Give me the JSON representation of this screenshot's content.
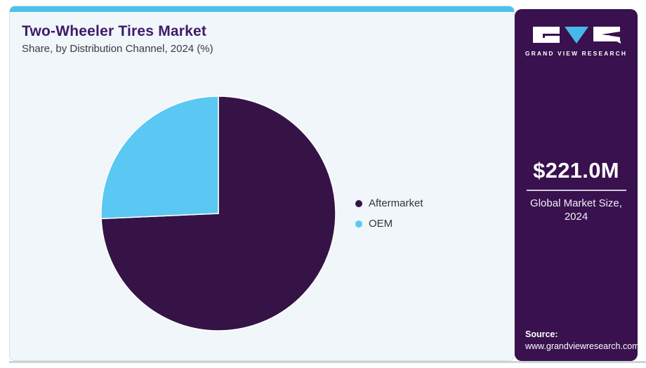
{
  "header": {
    "title": "Two-Wheeler Tires Market",
    "subtitle": "Share, by Distribution Channel, 2024 (%)"
  },
  "chart_data": {
    "type": "pie",
    "title": "Two-Wheeler Tires Market",
    "subtitle": "Share, by Distribution Channel, 2024 (%)",
    "unit": "%",
    "slices": [
      {
        "label": "Aftermarket",
        "value": 74.3,
        "color": "#351347"
      },
      {
        "label": "OEM",
        "value": 25.7,
        "color": "#5ac8f2"
      }
    ],
    "start_angle": "12-oclock",
    "direction": "clockwise",
    "legend_position": "right",
    "data_labels_shown": false
  },
  "sidebar": {
    "brand_name": "GRAND VIEW RESEARCH",
    "metric": {
      "value": "$221.0M",
      "label_line1": "Global Market Size,",
      "label_line2": "2024"
    },
    "source": {
      "label": "Source:",
      "url": "www.grandviewresearch.com"
    }
  },
  "colors": {
    "top_bar": "#4fc2ea",
    "card_background": "#f0f6fa",
    "card_border": "#d9dfe4",
    "sidebar_background": "#38114e",
    "title_text": "#3e1a69",
    "subtitle_text": "#3a3a44",
    "legend_text": "#34333f",
    "logo_triangle": "#47b9e8",
    "metric_divider": "#cfc8d8",
    "bottom_strip": "#cdd4da"
  }
}
